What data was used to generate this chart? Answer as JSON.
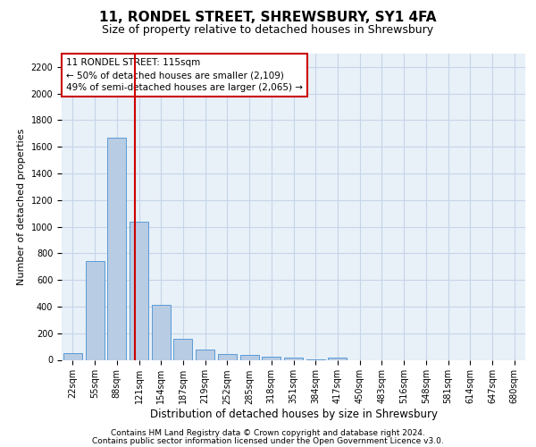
{
  "title1": "11, RONDEL STREET, SHREWSBURY, SY1 4FA",
  "title2": "Size of property relative to detached houses in Shrewsbury",
  "xlabel": "Distribution of detached houses by size in Shrewsbury",
  "ylabel": "Number of detached properties",
  "footer1": "Contains HM Land Registry data © Crown copyright and database right 2024.",
  "footer2": "Contains public sector information licensed under the Open Government Licence v3.0.",
  "categories": [
    "22sqm",
    "55sqm",
    "88sqm",
    "121sqm",
    "154sqm",
    "187sqm",
    "219sqm",
    "252sqm",
    "285sqm",
    "318sqm",
    "351sqm",
    "384sqm",
    "417sqm",
    "450sqm",
    "483sqm",
    "516sqm",
    "548sqm",
    "581sqm",
    "614sqm",
    "647sqm",
    "680sqm"
  ],
  "values": [
    50,
    740,
    1670,
    1035,
    410,
    155,
    80,
    45,
    40,
    25,
    20,
    5,
    15,
    0,
    0,
    0,
    0,
    0,
    0,
    0,
    0
  ],
  "bar_color": "#b8cce4",
  "bar_edge_color": "#5b9bd5",
  "vline_x_index": 2.82,
  "vline_color": "#cc0000",
  "annotation_line1": "11 RONDEL STREET: 115sqm",
  "annotation_line2": "← 50% of detached houses are smaller (2,109)",
  "annotation_line3": "49% of semi-detached houses are larger (2,065) →",
  "annotation_box_color": "#ffffff",
  "annotation_box_edge_color": "#cc0000",
  "ylim": [
    0,
    2300
  ],
  "yticks": [
    0,
    200,
    400,
    600,
    800,
    1000,
    1200,
    1400,
    1600,
    1800,
    2000,
    2200
  ],
  "grid_color": "#c5d5e8",
  "plot_bg_color": "#e8f0f8",
  "title1_fontsize": 11,
  "title2_fontsize": 9,
  "xlabel_fontsize": 8.5,
  "ylabel_fontsize": 8,
  "tick_fontsize": 7,
  "annot_fontsize": 7.5,
  "footer_fontsize": 6.5
}
